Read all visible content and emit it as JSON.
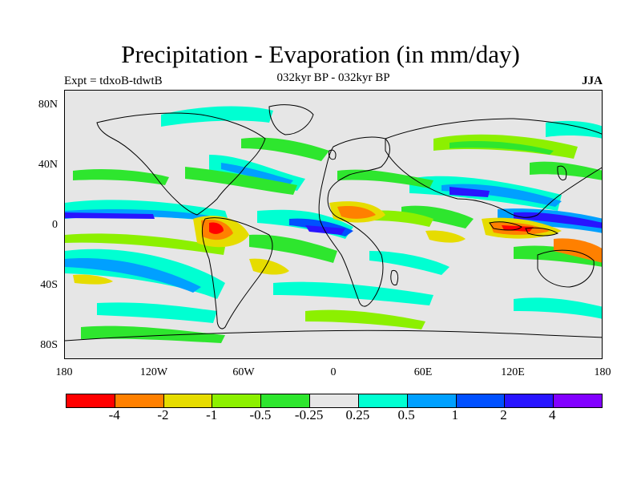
{
  "title": "Precipitation - Evaporation (in mm/day)",
  "subtitle_left": "Expt = tdxoB-tdwtB",
  "subtitle_center": "032kyr BP - 032kyr BP",
  "subtitle_right": "JJA",
  "axes": {
    "y_labels": [
      "80N",
      "40N",
      "0",
      "40S",
      "80S"
    ],
    "x_labels": [
      "180",
      "120W",
      "60W",
      "0",
      "60E",
      "120E",
      "180"
    ]
  },
  "colorbar": {
    "colors": [
      "#ff0000",
      "#ff8000",
      "#e6dc00",
      "#8cf000",
      "#2ee62e",
      "#e6e6e6",
      "#00ffd2",
      "#00a0ff",
      "#0050ff",
      "#2814ff",
      "#8200ff"
    ],
    "labels": [
      "-4",
      "-2",
      "-1",
      "-0.5",
      "-0.25",
      "0.25",
      "0.5",
      "1",
      "2",
      "4"
    ]
  },
  "colors": {
    "background": "#e6e6e6",
    "coastline": "#000000"
  }
}
